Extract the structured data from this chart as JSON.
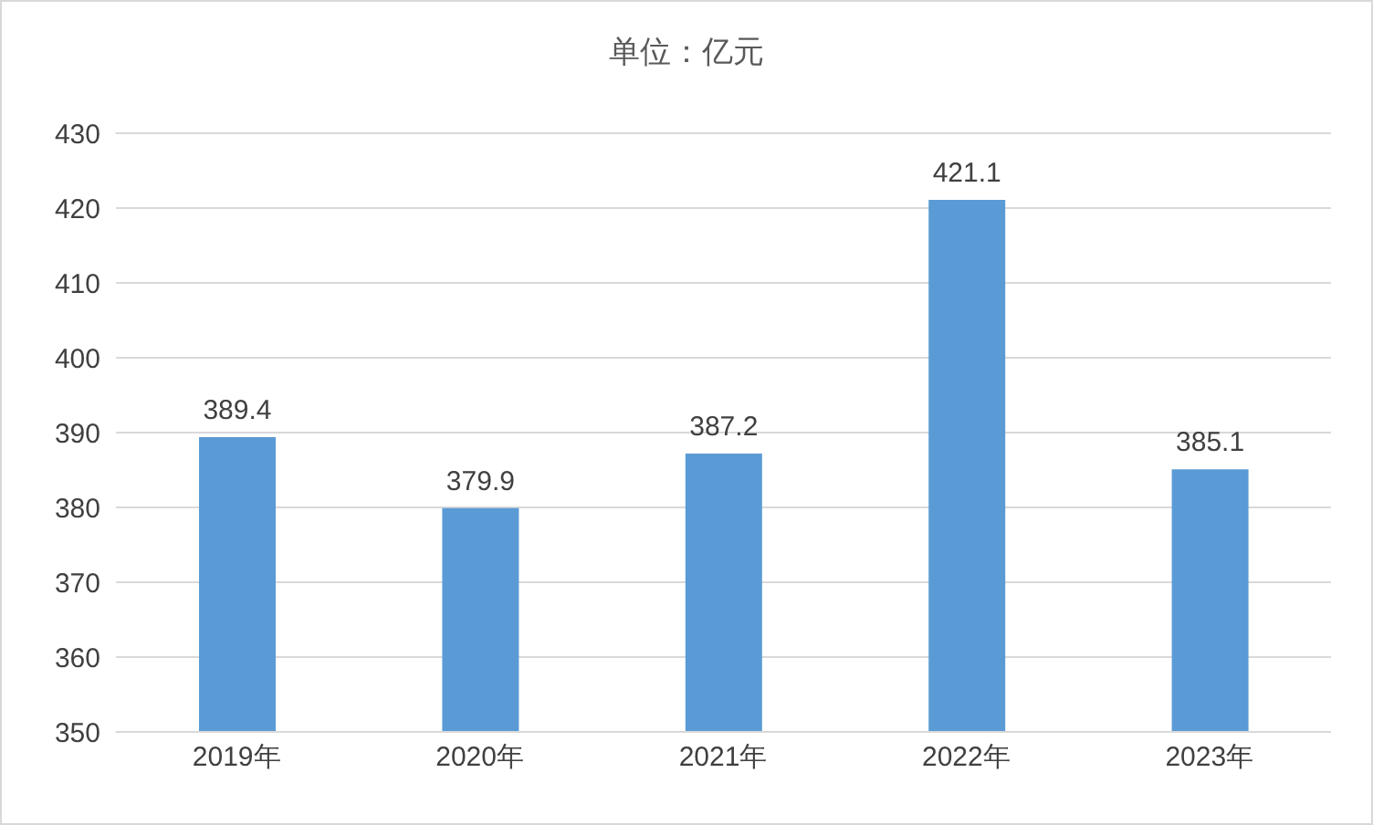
{
  "chart_data": {
    "type": "bar",
    "title": "单位：亿元",
    "categories": [
      "2019年",
      "2020年",
      "2021年",
      "2022年",
      "2023年"
    ],
    "values": [
      389.4,
      379.9,
      387.2,
      421.1,
      385.1
    ],
    "color": "#5b9bd5",
    "ylim": [
      350,
      430
    ],
    "yticks": [
      350,
      360,
      370,
      380,
      390,
      400,
      410,
      420,
      430
    ],
    "grid": "y",
    "data_labels": true
  }
}
